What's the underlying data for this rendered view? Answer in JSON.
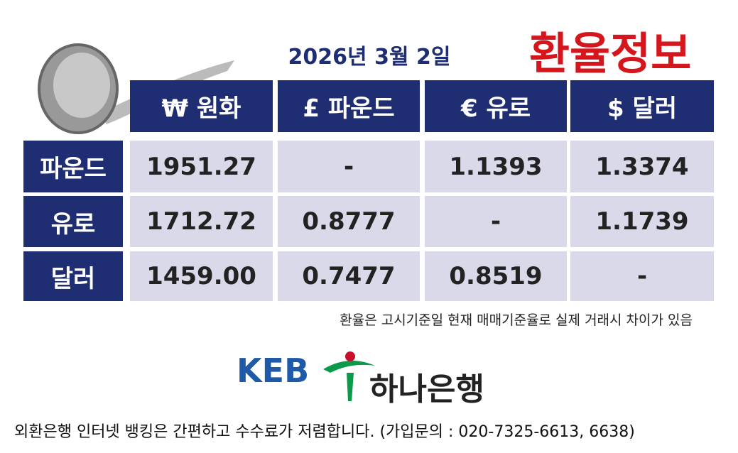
{
  "date": "2026년 3월 2일",
  "title": "환율정보",
  "table": {
    "header": [
      "₩ 원화",
      "£ 파운드",
      "€ 유로",
      "$ 달러"
    ],
    "rows": [
      [
        "파운드",
        "1951.27",
        "-",
        "1.1393",
        "1.3374"
      ],
      [
        "유로",
        "1712.72",
        "0.8777",
        "-",
        "1.1739"
      ],
      [
        "달러",
        "1459.00",
        "0.7477",
        "0.8519",
        "-"
      ]
    ]
  },
  "note": "환율은 고시기준일 현재 매매기준율로 실제 거래시 차이가 있음",
  "logo": {
    "brand": "KEB",
    "name": "하나은행"
  },
  "footer": "외환은행 인터넷 뱅킹은 간편하고 수수료가 저렴합니다. (가입문의 : 020-7325-6613, 6638)"
}
